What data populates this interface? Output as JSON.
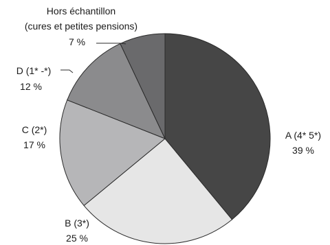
{
  "chart_data": {
    "type": "pie",
    "title": "",
    "start": "12 o'clock",
    "direction": "clockwise",
    "slices": [
      {
        "name": "A (4* 5*)",
        "value": 39,
        "label": "39 %",
        "color": "#464646"
      },
      {
        "name": "B (3*)",
        "value": 25,
        "label": "25 %",
        "color": "#e6e6e6"
      },
      {
        "name": "C (2*)",
        "value": 17,
        "label": "17 %",
        "color": "#b6b6b8"
      },
      {
        "name": "D (1* -*)",
        "value": 12,
        "label": "12 %",
        "color": "#8b8b8d"
      },
      {
        "name": "Hors échantillon",
        "name2": "(cures et petites pensions)",
        "value": 7,
        "label": "7 %",
        "color": "#6a6a6c"
      }
    ]
  }
}
